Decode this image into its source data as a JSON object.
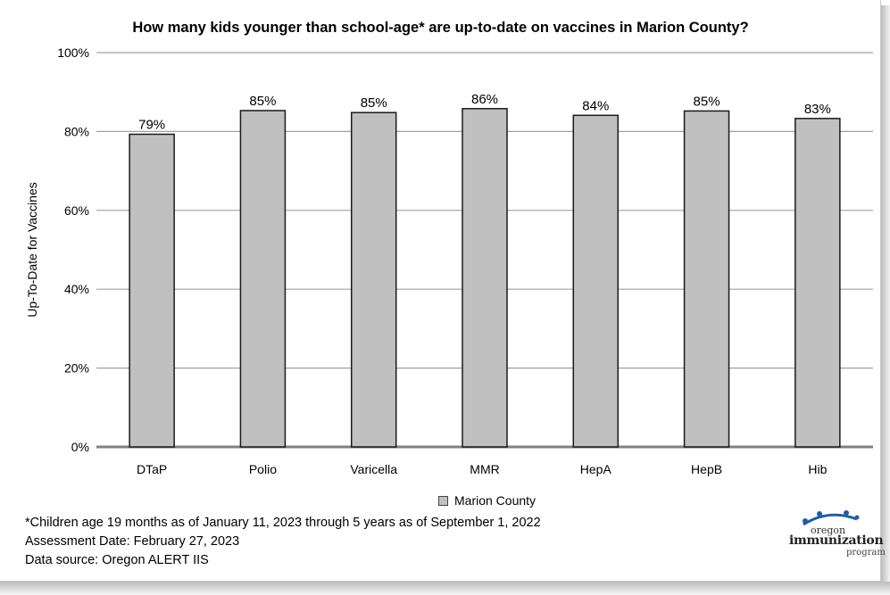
{
  "chart_data": {
    "type": "bar",
    "title": "How many kids younger than school-age* are up-to-date on vaccines in Marion County?",
    "ylabel": "Up-To-Date for Vaccines",
    "xlabel": "",
    "categories": [
      "DTaP",
      "Polio",
      "Varicella",
      "MMR",
      "HepA",
      "HepB",
      "Hib"
    ],
    "series": [
      {
        "name": "Marion County",
        "values": [
          79.3,
          85.3,
          84.8,
          85.8,
          84.1,
          85.2,
          83.3
        ],
        "labels": [
          "79%",
          "85%",
          "85%",
          "86%",
          "84%",
          "85%",
          "83%"
        ]
      }
    ],
    "ylim": [
      0,
      100
    ],
    "yticks": [
      0,
      20,
      40,
      60,
      80,
      100
    ],
    "ytick_labels": [
      "0%",
      "20%",
      "40%",
      "60%",
      "80%",
      "100%"
    ],
    "grid": true,
    "legend_position": "bottom-center",
    "colors": {
      "bar_fill": "#c0c0c0",
      "bar_edge": "#1a1a1a",
      "grid": "#a0a0a0"
    }
  },
  "footnotes": [
    "*Children age 19 months as of January 11, 2023 through 5 years as of September 1, 2022",
    "Assessment Date: February 27, 2023",
    "Data source: Oregon ALERT IIS"
  ],
  "logo": {
    "line1": "oregon",
    "line2": "immunization",
    "line3": "program"
  }
}
